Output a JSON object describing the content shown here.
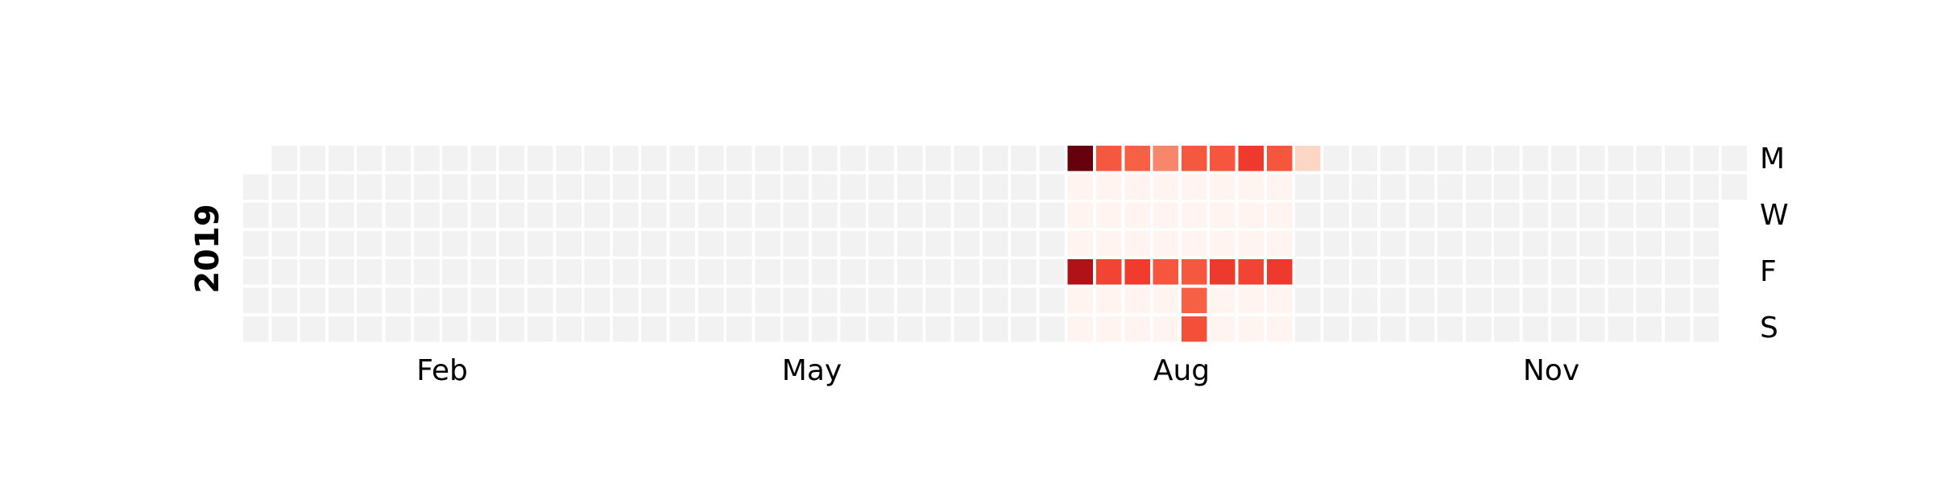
{
  "chart_data": {
    "type": "heatmap",
    "subtype": "calendar",
    "year_label": "2019",
    "month_labels": [
      "Feb",
      "May",
      "Aug",
      "Nov"
    ],
    "day_labels": [
      "M",
      "W",
      "F",
      "S"
    ],
    "colormap": "Reds",
    "empty_color": "#f2f2f2",
    "grid_gap_color": "#ffffff",
    "active_cells": [
      {
        "week": 29,
        "day": 0,
        "color": "#67000d",
        "value": 1.0
      },
      {
        "week": 30,
        "day": 0,
        "color": "#f4583f",
        "value": 0.62
      },
      {
        "week": 31,
        "day": 0,
        "color": "#f66045",
        "value": 0.6
      },
      {
        "week": 32,
        "day": 0,
        "color": "#f8866a",
        "value": 0.45
      },
      {
        "week": 33,
        "day": 0,
        "color": "#f4583f",
        "value": 0.62
      },
      {
        "week": 34,
        "day": 0,
        "color": "#f6553e",
        "value": 0.63
      },
      {
        "week": 35,
        "day": 0,
        "color": "#ee3a2c",
        "value": 0.7
      },
      {
        "week": 36,
        "day": 0,
        "color": "#f6553e",
        "value": 0.63
      },
      {
        "week": 37,
        "day": 0,
        "color": "#fdd7c5",
        "value": 0.15
      },
      {
        "week": 29,
        "day": 1,
        "color": "#fff4ef",
        "value": 0.03
      },
      {
        "week": 30,
        "day": 1,
        "color": "#fff4ef",
        "value": 0.03
      },
      {
        "week": 31,
        "day": 1,
        "color": "#fff4ef",
        "value": 0.03
      },
      {
        "week": 32,
        "day": 1,
        "color": "#fff4ef",
        "value": 0.03
      },
      {
        "week": 33,
        "day": 1,
        "color": "#fff4ef",
        "value": 0.03
      },
      {
        "week": 34,
        "day": 1,
        "color": "#fff4ef",
        "value": 0.03
      },
      {
        "week": 35,
        "day": 1,
        "color": "#fff4ef",
        "value": 0.03
      },
      {
        "week": 36,
        "day": 1,
        "color": "#fff4ef",
        "value": 0.03
      },
      {
        "week": 29,
        "day": 2,
        "color": "#fff4ef",
        "value": 0.03
      },
      {
        "week": 30,
        "day": 2,
        "color": "#fff4ef",
        "value": 0.03
      },
      {
        "week": 31,
        "day": 2,
        "color": "#fff4ef",
        "value": 0.03
      },
      {
        "week": 32,
        "day": 2,
        "color": "#fff4ef",
        "value": 0.03
      },
      {
        "week": 33,
        "day": 2,
        "color": "#fff4ef",
        "value": 0.03
      },
      {
        "week": 34,
        "day": 2,
        "color": "#fff4ef",
        "value": 0.03
      },
      {
        "week": 35,
        "day": 2,
        "color": "#fff4ef",
        "value": 0.03
      },
      {
        "week": 36,
        "day": 2,
        "color": "#fff4ef",
        "value": 0.03
      },
      {
        "week": 29,
        "day": 3,
        "color": "#fff4ef",
        "value": 0.03
      },
      {
        "week": 30,
        "day": 3,
        "color": "#fff4ef",
        "value": 0.03
      },
      {
        "week": 31,
        "day": 3,
        "color": "#fff4ef",
        "value": 0.03
      },
      {
        "week": 32,
        "day": 3,
        "color": "#fff4ef",
        "value": 0.03
      },
      {
        "week": 33,
        "day": 3,
        "color": "#fff4ef",
        "value": 0.03
      },
      {
        "week": 34,
        "day": 3,
        "color": "#fff4ef",
        "value": 0.03
      },
      {
        "week": 35,
        "day": 3,
        "color": "#fff4ef",
        "value": 0.03
      },
      {
        "week": 36,
        "day": 3,
        "color": "#fff4ef",
        "value": 0.03
      },
      {
        "week": 29,
        "day": 4,
        "color": "#b11218",
        "value": 0.88
      },
      {
        "week": 30,
        "day": 4,
        "color": "#f14432",
        "value": 0.67
      },
      {
        "week": 31,
        "day": 4,
        "color": "#ef3c2c",
        "value": 0.69
      },
      {
        "week": 32,
        "day": 4,
        "color": "#f6553e",
        "value": 0.63
      },
      {
        "week": 33,
        "day": 4,
        "color": "#f4583f",
        "value": 0.62
      },
      {
        "week": 34,
        "day": 4,
        "color": "#ee3a2c",
        "value": 0.7
      },
      {
        "week": 35,
        "day": 4,
        "color": "#f14432",
        "value": 0.67
      },
      {
        "week": 36,
        "day": 4,
        "color": "#ee3a2c",
        "value": 0.7
      },
      {
        "week": 29,
        "day": 5,
        "color": "#fff4ef",
        "value": 0.03
      },
      {
        "week": 30,
        "day": 5,
        "color": "#fff4ef",
        "value": 0.03
      },
      {
        "week": 31,
        "day": 5,
        "color": "#fff4ef",
        "value": 0.03
      },
      {
        "week": 32,
        "day": 5,
        "color": "#fff4ef",
        "value": 0.03
      },
      {
        "week": 33,
        "day": 5,
        "color": "#f66045",
        "value": 0.6
      },
      {
        "week": 34,
        "day": 5,
        "color": "#fff4ef",
        "value": 0.03
      },
      {
        "week": 35,
        "day": 5,
        "color": "#fff4ef",
        "value": 0.03
      },
      {
        "week": 36,
        "day": 5,
        "color": "#fff4ef",
        "value": 0.03
      },
      {
        "week": 29,
        "day": 6,
        "color": "#fff4ef",
        "value": 0.03
      },
      {
        "week": 30,
        "day": 6,
        "color": "#fff4ef",
        "value": 0.03
      },
      {
        "week": 31,
        "day": 6,
        "color": "#fff4ef",
        "value": 0.03
      },
      {
        "week": 32,
        "day": 6,
        "color": "#fff4ef",
        "value": 0.03
      },
      {
        "week": 33,
        "day": 6,
        "color": "#f44f39",
        "value": 0.64
      },
      {
        "week": 34,
        "day": 6,
        "color": "#fff4ef",
        "value": 0.03
      },
      {
        "week": 35,
        "day": 6,
        "color": "#fff4ef",
        "value": 0.03
      },
      {
        "week": 36,
        "day": 6,
        "color": "#fff4ef",
        "value": 0.03
      }
    ]
  }
}
